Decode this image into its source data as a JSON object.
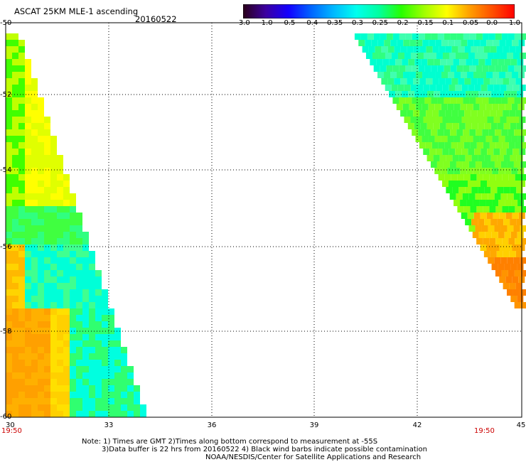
{
  "header": {
    "title": "ASCAT 25KM MLE-1 ascending",
    "date": "20160522"
  },
  "colorbar": {
    "labels": [
      "-3.0",
      "-1.0",
      "-0.5",
      "-0.4",
      "-0.35",
      "-0.3",
      "-0.25",
      "-0.2",
      "-0.15",
      "-0.1",
      "-0.05",
      "0.0",
      "1.0"
    ],
    "colors": [
      "#2a0018",
      "#3c00a0",
      "#1400ff",
      "#0064ff",
      "#00b8ff",
      "#00ffee",
      "#00ffa0",
      "#28ff00",
      "#a0ff00",
      "#ffff00",
      "#ffa000",
      "#ff5000",
      "#ff0000"
    ]
  },
  "axes": {
    "y_labels": [
      "-50",
      "-52",
      "-54",
      "-56",
      "-58",
      "-60"
    ],
    "x_labels": [
      "30",
      "33",
      "36",
      "39",
      "42",
      "45"
    ]
  },
  "times": {
    "left": "19:50",
    "right": "19:50"
  },
  "notes": {
    "line1": "Note: 1) Times are GMT 2)Times along bottom correspond to measurement at -55S",
    "line2": "3)Data buffer is 22 hrs from 20160522 4) Black wind barbs indicate possible contamination",
    "line3": "NOAA/NESDIS/Center for Satellite Applications and Research"
  }
}
